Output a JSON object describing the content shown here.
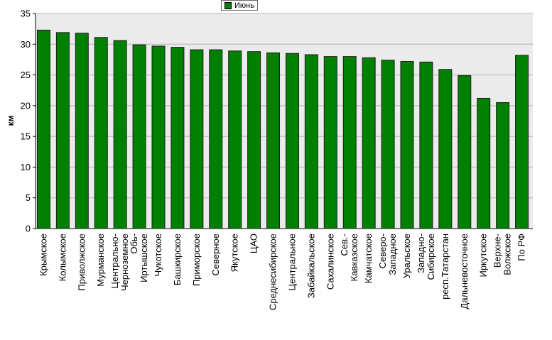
{
  "chart_data": {
    "type": "bar",
    "title": "",
    "xlabel": "",
    "ylabel": "км",
    "ylim": [
      0,
      35
    ],
    "yticks": [
      0,
      5,
      10,
      15,
      20,
      25,
      30,
      35
    ],
    "grid": true,
    "legend_position": "top-center",
    "bar_color": "#008000",
    "plot_background": "#ebebeb",
    "categories": [
      "Крымское",
      "Колымское",
      "Приволжское",
      "Мурманское",
      "Центрально-Черноземное",
      "Обь-Иртышское",
      "Чукотское",
      "Башкирское",
      "Приморское",
      "Северное",
      "Якутское",
      "ЦАО",
      "Среднесибирское",
      "Центральное",
      "Забайкальское",
      "Сахалинское",
      "Сев.-Кавказское",
      "Камчатское",
      "Северо-Западное",
      "Уральское",
      "Западно-Сибирское",
      "респ.Татарстан",
      "Дальневосточное",
      "Иркутское",
      "Верхне-Волжское",
      "По РФ"
    ],
    "tick_labels": [
      [
        "Крымское"
      ],
      [
        "Колымское"
      ],
      [
        "Приволжское"
      ],
      [
        "Мурманское"
      ],
      [
        "Центрально-",
        "Черноземное"
      ],
      [
        "Обь-",
        "Иртышское"
      ],
      [
        "Чукотское"
      ],
      [
        "Башкирское"
      ],
      [
        "Приморское"
      ],
      [
        "Северное"
      ],
      [
        "Якутское"
      ],
      [
        "ЦАО"
      ],
      [
        "Среднесибирское"
      ],
      [
        "Центральное"
      ],
      [
        "Забайкальское"
      ],
      [
        "Сахалинское"
      ],
      [
        "Сев.-",
        "Кавказское"
      ],
      [
        "Камчатское"
      ],
      [
        "Северо-",
        "Западное"
      ],
      [
        "Уральское"
      ],
      [
        "Западно-",
        "Сибирское"
      ],
      [
        "респ.Татарстан"
      ],
      [
        "Дальневосточное"
      ],
      [
        "Иркутское"
      ],
      [
        "Верхне-",
        "Волжское"
      ],
      [
        "По РФ"
      ]
    ],
    "series": [
      {
        "name": "Июнь",
        "values": [
          32.3,
          31.9,
          31.8,
          31.1,
          30.6,
          29.9,
          29.7,
          29.5,
          29.1,
          29.1,
          28.9,
          28.8,
          28.6,
          28.5,
          28.3,
          28.0,
          28.0,
          27.8,
          27.4,
          27.2,
          27.1,
          25.9,
          24.9,
          21.2,
          20.5,
          28.2
        ]
      }
    ]
  }
}
